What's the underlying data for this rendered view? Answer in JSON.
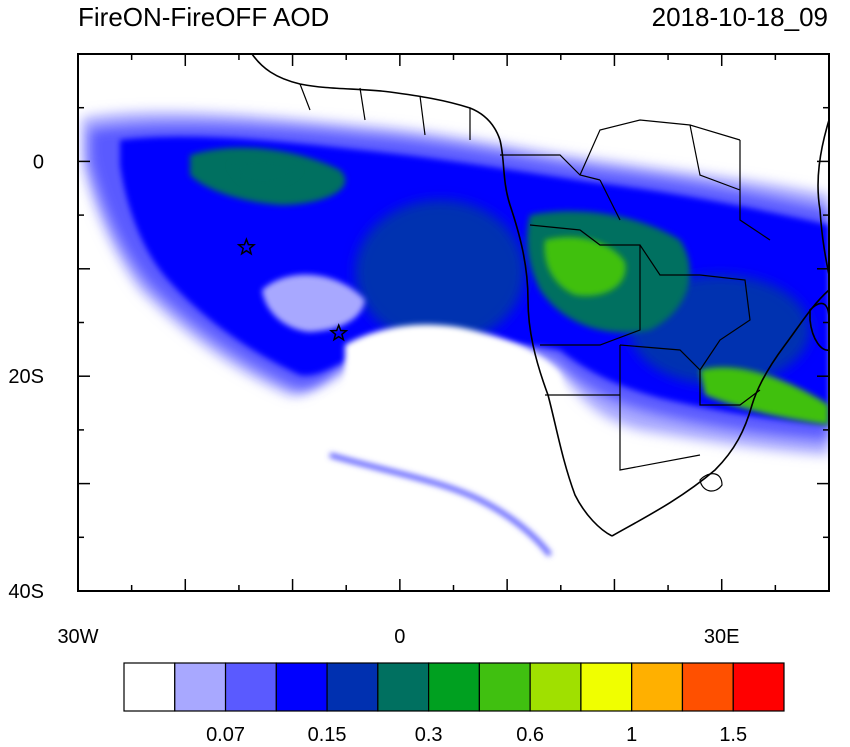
{
  "title_left": "FireON-FireOFF AOD",
  "title_right": "2018-10-18_09",
  "map": {
    "lon_range": [
      -30,
      40
    ],
    "lat_range": [
      -40,
      10
    ],
    "lon_ticks": [
      {
        "value": -30,
        "label": "30W"
      },
      {
        "value": 0,
        "label": "0"
      },
      {
        "value": 30,
        "label": "30E"
      }
    ],
    "lat_ticks": [
      {
        "value": 0,
        "label": "0"
      },
      {
        "value": -20,
        "label": "20S"
      },
      {
        "value": -40,
        "label": "40S"
      }
    ],
    "markers": [
      {
        "name": "star-marker-1",
        "lon": -14.3,
        "lat": -8.0
      },
      {
        "name": "star-marker-2",
        "lon": -5.7,
        "lat": -16.0
      }
    ]
  },
  "colorbar": {
    "colors": [
      "#ffffff",
      "#a8a8ff",
      "#5a5aff",
      "#0000ff",
      "#0030b0",
      "#007060",
      "#00a020",
      "#40c010",
      "#a0e000",
      "#f0ff00",
      "#ffb000",
      "#ff5000",
      "#ff0000"
    ],
    "labels": [
      "0.07",
      "0.15",
      "0.3",
      "0.6",
      "1",
      "1.5"
    ]
  }
}
